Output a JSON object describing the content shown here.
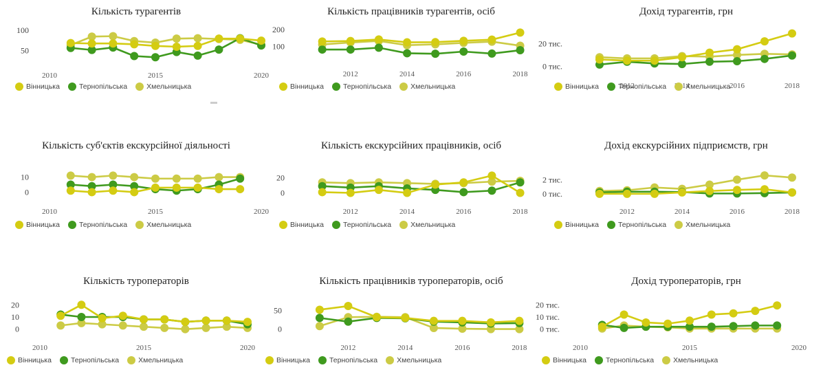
{
  "colors": {
    "Вінницька": "#d4cc12",
    "Тернопільська": "#3f9a1e",
    "Хмельницька": "#cccb45"
  },
  "legend": [
    "Вінницька",
    "Тернопільська",
    "Хмельницька"
  ],
  "chart_data": [
    {
      "type": "line",
      "title": "Кількість турагентів",
      "x": [
        2011,
        2012,
        2013,
        2014,
        2015,
        2016,
        2017,
        2018,
        2019,
        2020
      ],
      "xticks": [
        2010,
        2015,
        2020
      ],
      "xlim": [
        2010,
        2020
      ],
      "yticks": [
        {
          "v": 50,
          "label": "50"
        },
        {
          "v": 100,
          "label": "100"
        }
      ],
      "ylim": [
        25,
        103
      ],
      "series": [
        {
          "name": "Вінницька",
          "values": [
            68,
            67,
            67,
            65,
            61,
            59,
            61,
            79,
            79,
            74
          ]
        },
        {
          "name": "Тернопільська",
          "values": [
            56,
            51,
            57,
            36,
            33,
            46,
            37,
            52,
            80,
            62
          ]
        },
        {
          "name": "Хмельницька",
          "values": [
            63,
            84,
            85,
            73,
            69,
            79,
            80,
            78,
            76,
            64
          ]
        }
      ]
    },
    {
      "type": "line",
      "title": "Кількість працівників турагентів, осіб",
      "x": [
        2011,
        2012,
        2013,
        2014,
        2015,
        2016,
        2017,
        2018
      ],
      "xticks": [
        2012,
        2014,
        2016,
        2018
      ],
      "xlim": [
        2010.4,
        2018.4
      ],
      "yticks": [
        {
          "v": 100,
          "label": "100"
        },
        {
          "v": 200,
          "label": "200"
        }
      ],
      "ylim": [
        25,
        205
      ],
      "series": [
        {
          "name": "Вінницька",
          "values": [
            130,
            133,
            142,
            125,
            126,
            134,
            141,
            183
          ]
        },
        {
          "name": "Тернопільська",
          "values": [
            82,
            82,
            93,
            60,
            57,
            70,
            58,
            78
          ]
        },
        {
          "name": "Хмельницька",
          "values": [
            112,
            124,
            133,
            108,
            113,
            122,
            129,
            105
          ]
        }
      ]
    },
    {
      "type": "line",
      "title": "Дохід турагентів, грн",
      "x": [
        2011,
        2012,
        2013,
        2014,
        2015,
        2016,
        2017,
        2018
      ],
      "xticks": [
        2012,
        2014,
        2016,
        2018
      ],
      "xlim": [
        2010.4,
        2018.4
      ],
      "yticks": [
        {
          "v": 0,
          "label": "0 тис."
        },
        {
          "v": 20000,
          "label": "20 тис."
        }
      ],
      "ylim": [
        -4000,
        33000
      ],
      "series": [
        {
          "name": "Вінницька",
          "values": [
            6000,
            5000,
            5000,
            8000,
            12000,
            15000,
            22000,
            29000
          ]
        },
        {
          "name": "Тернопільська",
          "values": [
            1500,
            4000,
            2500,
            2000,
            4000,
            4500,
            6500,
            9500
          ]
        },
        {
          "name": "Хмельницька",
          "values": [
            8000,
            7000,
            7000,
            9000,
            8500,
            10000,
            11000,
            10500
          ]
        }
      ]
    },
    {
      "type": "line",
      "title": "Кількість суб'єктів екскурсійної діяльності",
      "x": [
        2011,
        2012,
        2013,
        2014,
        2015,
        2016,
        2017,
        2018,
        2019
      ],
      "xticks": [
        2010,
        2015,
        2020
      ],
      "xlim": [
        2010,
        2020
      ],
      "yticks": [
        {
          "v": 0,
          "label": "0"
        },
        {
          "v": 10,
          "label": "10"
        }
      ],
      "ylim": [
        -3,
        13
      ],
      "series": [
        {
          "name": "Вінницька",
          "values": [
            1,
            0,
            1,
            0,
            3,
            3,
            3,
            2,
            2
          ]
        },
        {
          "name": "Тернопільська",
          "values": [
            5,
            4,
            5,
            4,
            2,
            1,
            2,
            5,
            9
          ]
        },
        {
          "name": "Хмельницька",
          "values": [
            11,
            10,
            11,
            10,
            9,
            9,
            9,
            10,
            10
          ]
        }
      ]
    },
    {
      "type": "line",
      "title": "Кількість екскурсійних працівників, осіб",
      "x": [
        2011,
        2012,
        2013,
        2014,
        2015,
        2016,
        2017,
        2018
      ],
      "xticks": [
        2012,
        2014,
        2016,
        2018
      ],
      "xlim": [
        2010.4,
        2018.4
      ],
      "yticks": [
        {
          "v": 0,
          "label": "0"
        },
        {
          "v": 20,
          "label": "20"
        }
      ],
      "ylim": [
        -5,
        27
      ],
      "series": [
        {
          "name": "Вінницька",
          "values": [
            1,
            0,
            4,
            0,
            11,
            14,
            23,
            0
          ]
        },
        {
          "name": "Тернопільська",
          "values": [
            9,
            7,
            9,
            6,
            4,
            1,
            3,
            14
          ]
        },
        {
          "name": "Хмельницька",
          "values": [
            14,
            13,
            14,
            13,
            12,
            13,
            15,
            16
          ]
        }
      ]
    },
    {
      "type": "line",
      "title": "Дохід екскурсійних підприємств, грн",
      "x": [
        2011,
        2012,
        2013,
        2014,
        2015,
        2016,
        2017,
        2018
      ],
      "xticks": [
        2012,
        2014,
        2016,
        2018
      ],
      "xlim": [
        2010.4,
        2018.4
      ],
      "yticks": [
        {
          "v": 0,
          "label": "0 тис."
        },
        {
          "v": 2000,
          "label": "2 тис."
        }
      ],
      "ylim": [
        -400,
        3000
      ],
      "series": [
        {
          "name": "Вінницька",
          "values": [
            0,
            0,
            0,
            200,
            400,
            550,
            650,
            200
          ]
        },
        {
          "name": "Тернопільська",
          "values": [
            200,
            300,
            300,
            250,
            50,
            50,
            100,
            200
          ]
        },
        {
          "name": "Хмельницька",
          "values": [
            400,
            500,
            900,
            700,
            1300,
            2000,
            2600,
            2300
          ]
        }
      ]
    },
    {
      "type": "line",
      "title": "Кількість туроператорів",
      "x": [
        2011,
        2012,
        2013,
        2014,
        2015,
        2016,
        2017,
        2018,
        2019,
        2020
      ],
      "xticks": [
        2010,
        2015,
        2020
      ],
      "xlim": [
        2010,
        2020
      ],
      "yticks": [
        {
          "v": 0,
          "label": "0"
        },
        {
          "v": 10,
          "label": "10"
        },
        {
          "v": 20,
          "label": "20"
        }
      ],
      "ylim": [
        -3,
        23
      ],
      "series": [
        {
          "name": "Вінницька",
          "values": [
            11,
            20,
            9,
            11,
            8,
            8,
            6,
            7,
            7,
            6
          ]
        },
        {
          "name": "Тернопільська",
          "values": [
            12,
            10,
            10,
            10,
            8,
            8,
            6,
            7,
            7,
            4
          ]
        },
        {
          "name": "Хмельницька",
          "values": [
            3,
            5,
            4,
            3,
            2,
            1,
            0,
            1,
            2,
            1
          ]
        }
      ]
    },
    {
      "type": "line",
      "title": "Кількість працівників туроператорів, осіб",
      "x": [
        2011,
        2012,
        2013,
        2014,
        2015,
        2016,
        2017,
        2018
      ],
      "xticks": [
        2012,
        2014,
        2016,
        2018
      ],
      "xlim": [
        2010.4,
        2018.4
      ],
      "yticks": [
        {
          "v": 0,
          "label": "0"
        },
        {
          "v": 50,
          "label": "50"
        }
      ],
      "ylim": [
        -10,
        75
      ],
      "series": [
        {
          "name": "Вінницька",
          "values": [
            52,
            62,
            32,
            30,
            22,
            22,
            18,
            22
          ]
        },
        {
          "name": "Тернопільська",
          "values": [
            30,
            20,
            30,
            29,
            20,
            18,
            15,
            16
          ]
        },
        {
          "name": "Хмельницька",
          "values": [
            8,
            32,
            33,
            32,
            3,
            1,
            0,
            0
          ]
        }
      ]
    },
    {
      "type": "line",
      "title": "Дохід туроператорів, грн",
      "x": [
        2011,
        2012,
        2013,
        2014,
        2015,
        2016,
        2017,
        2018,
        2019
      ],
      "xticks": [
        2010,
        2015,
        2020
      ],
      "xlim": [
        2010,
        2020
      ],
      "yticks": [
        {
          "v": 0,
          "label": "0 тис."
        },
        {
          "v": 10000,
          "label": "10 тис."
        },
        {
          "v": 20000,
          "label": "20 тис."
        }
      ],
      "ylim": [
        -3000,
        23000
      ],
      "series": [
        {
          "name": "Вінницька",
          "values": [
            2000,
            12000,
            5500,
            4500,
            7000,
            12000,
            13000,
            15000,
            19500
          ]
        },
        {
          "name": "Тернопільська",
          "values": [
            3500,
            1000,
            2000,
            2000,
            2000,
            2000,
            2500,
            3000,
            3000
          ]
        },
        {
          "name": "Хмельницька",
          "values": [
            500,
            3000,
            2000,
            1500,
            500,
            500,
            500,
            500,
            500
          ]
        }
      ]
    }
  ]
}
